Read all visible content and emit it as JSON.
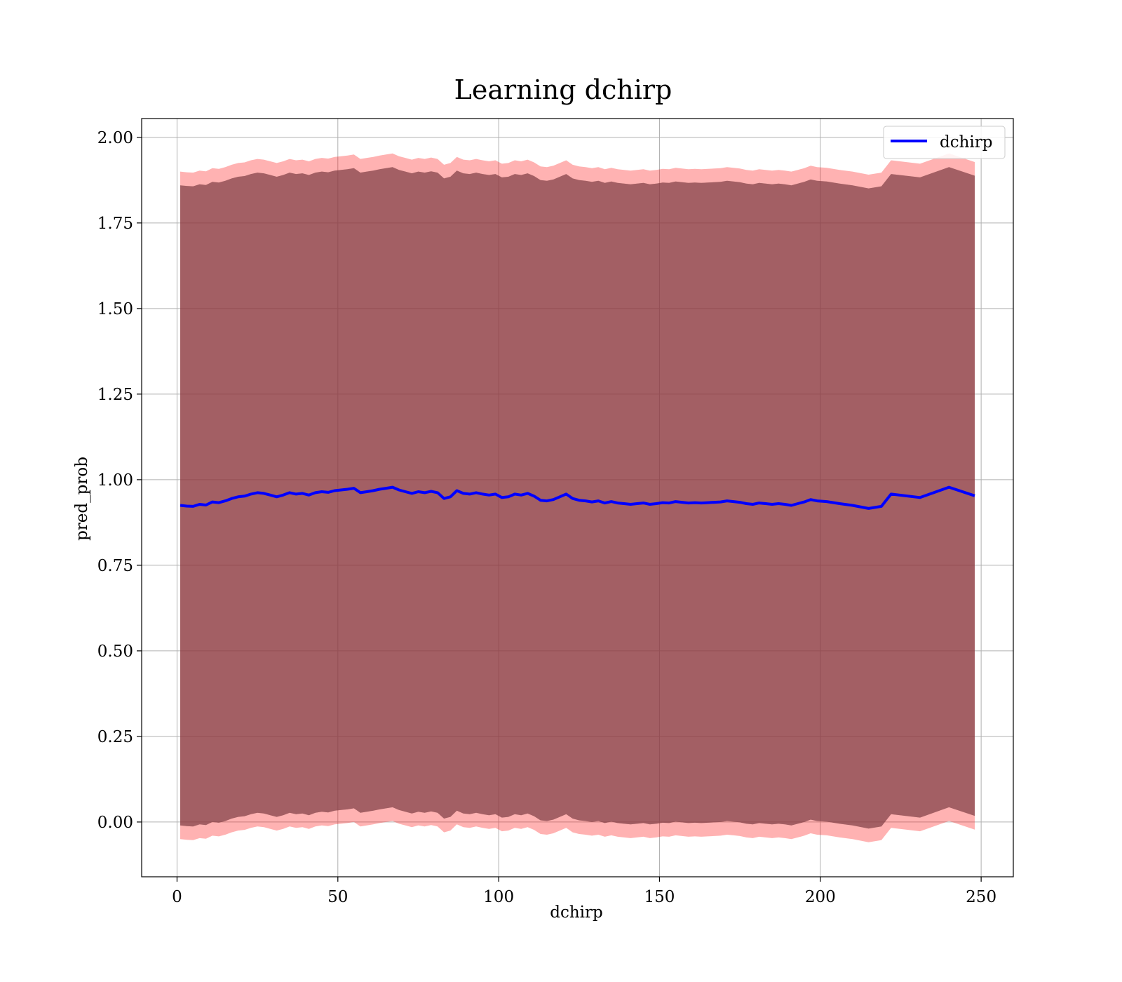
{
  "chart_data": {
    "type": "area",
    "title": "Learning dchirp",
    "xlabel": "dchirp",
    "ylabel": "pred_prob",
    "xlim": [
      -11,
      260
    ],
    "ylim": [
      -0.16,
      2.055
    ],
    "xticks": [
      0,
      50,
      100,
      150,
      200,
      250
    ],
    "yticks": [
      0.0,
      0.25,
      0.5,
      0.75,
      1.0,
      1.25,
      1.5,
      1.75,
      2.0
    ],
    "xtick_labels": [
      "0",
      "50",
      "100",
      "150",
      "200",
      "250"
    ],
    "ytick_labels": [
      "0.00",
      "0.25",
      "0.50",
      "0.75",
      "1.00",
      "1.25",
      "1.50",
      "1.75",
      "2.00"
    ],
    "grid": true,
    "legend": {
      "position": "top-right",
      "entries": [
        "dchirp"
      ]
    },
    "colors": {
      "line": "#0000ff",
      "inner_band": "#8b4513",
      "outer_band": "#ff0000",
      "grid": "#b0b0b0"
    },
    "series": [
      {
        "name": "dchirp",
        "x": [
          1,
          3,
          5,
          7,
          9,
          11,
          13,
          15,
          17,
          19,
          21,
          23,
          25,
          27,
          29,
          31,
          33,
          35,
          37,
          39,
          41,
          43,
          45,
          47,
          49,
          51,
          53,
          55,
          57,
          59,
          61,
          63,
          65,
          67,
          69,
          71,
          73,
          75,
          77,
          79,
          81,
          83,
          85,
          87,
          89,
          91,
          93,
          95,
          97,
          99,
          101,
          103,
          105,
          107,
          109,
          111,
          113,
          115,
          117,
          119,
          121,
          123,
          125,
          127,
          129,
          131,
          133,
          135,
          137,
          139,
          141,
          143,
          145,
          147,
          149,
          151,
          153,
          155,
          157,
          159,
          161,
          163,
          165,
          167,
          169,
          171,
          173,
          175,
          177,
          179,
          181,
          183,
          185,
          187,
          189,
          191,
          193,
          195,
          197,
          199,
          202,
          206,
          210,
          215,
          219,
          222,
          231,
          240,
          248
        ],
        "y": [
          0.925,
          0.923,
          0.922,
          0.928,
          0.926,
          0.935,
          0.933,
          0.938,
          0.945,
          0.95,
          0.952,
          0.958,
          0.962,
          0.96,
          0.955,
          0.95,
          0.955,
          0.962,
          0.958,
          0.96,
          0.955,
          0.962,
          0.965,
          0.963,
          0.968,
          0.97,
          0.972,
          0.975,
          0.962,
          0.965,
          0.968,
          0.972,
          0.975,
          0.978,
          0.97,
          0.965,
          0.96,
          0.965,
          0.962,
          0.966,
          0.962,
          0.945,
          0.95,
          0.968,
          0.96,
          0.958,
          0.962,
          0.958,
          0.955,
          0.958,
          0.948,
          0.95,
          0.958,
          0.955,
          0.96,
          0.952,
          0.94,
          0.938,
          0.942,
          0.95,
          0.958,
          0.945,
          0.94,
          0.938,
          0.935,
          0.938,
          0.932,
          0.936,
          0.932,
          0.93,
          0.928,
          0.93,
          0.932,
          0.928,
          0.93,
          0.933,
          0.932,
          0.936,
          0.934,
          0.932,
          0.933,
          0.932,
          0.933,
          0.934,
          0.935,
          0.938,
          0.936,
          0.934,
          0.93,
          0.928,
          0.932,
          0.93,
          0.928,
          0.93,
          0.928,
          0.925,
          0.93,
          0.935,
          0.942,
          0.938,
          0.936,
          0.93,
          0.925,
          0.916,
          0.922,
          0.958,
          0.948,
          0.978,
          0.953
        ]
      }
    ],
    "bands": [
      {
        "label": "inner",
        "offset_lower": -0.935,
        "offset_upper": 0.935
      },
      {
        "label": "outer",
        "offset_lower": -0.975,
        "offset_upper": 0.975
      }
    ]
  }
}
